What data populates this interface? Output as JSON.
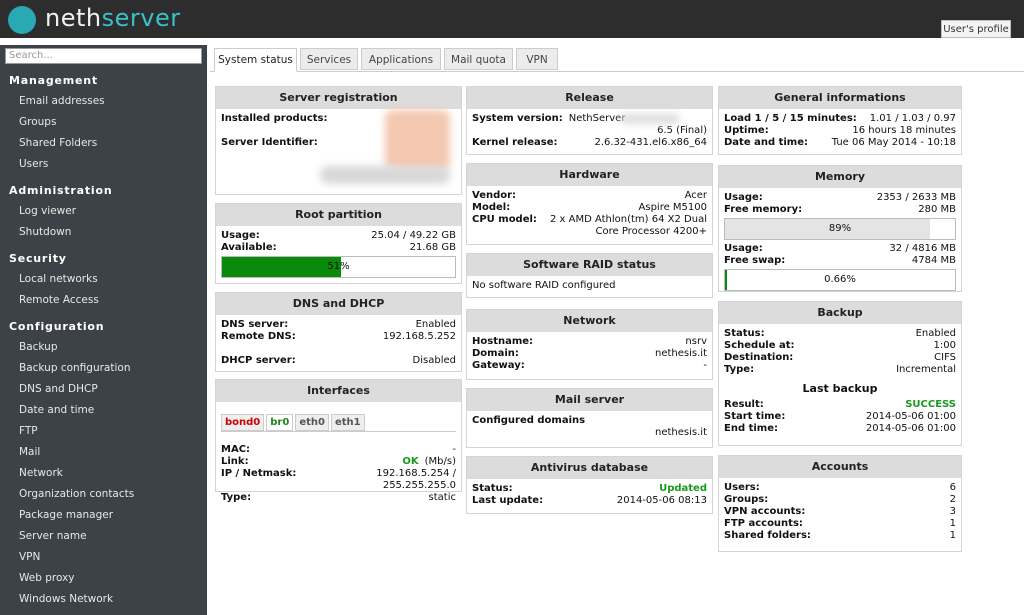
{
  "header": {
    "logo_parts": [
      "neth",
      "server"
    ],
    "profile": "User's profile"
  },
  "sidebar": {
    "search": "Search...",
    "sections": [
      {
        "title": "Management",
        "items": [
          "Email addresses",
          "Groups",
          "Shared Folders",
          "Users"
        ]
      },
      {
        "title": "Administration",
        "items": [
          "Log viewer",
          "Shutdown"
        ]
      },
      {
        "title": "Security",
        "items": [
          "Local networks",
          "Remote Access"
        ]
      },
      {
        "title": "Configuration",
        "items": [
          "Backup",
          "Backup configuration",
          "DNS and DHCP",
          "Date and time",
          "FTP",
          "Mail",
          "Network",
          "Organization contacts",
          "Package manager",
          "Server name",
          "VPN",
          "Web proxy",
          "Windows Network"
        ]
      }
    ]
  },
  "tabs": [
    "System status",
    "Services",
    "Applications",
    "Mail quota",
    "VPN"
  ],
  "columns": [
    [
      {
        "title": "Server registration",
        "groups": [
          [
            {
              "label": "Installed products:"
            }
          ],
          [
            {
              "label": "Server Identifier:"
            }
          ]
        ]
      },
      {
        "title": "Root partition",
        "groups": [
          [
            {
              "label": "Usage:",
              "value": "25.04 / 49.22 GB"
            },
            {
              "label": "Available:",
              "value": "21.68 GB"
            },
            {
              "bar": {
                "value": 51,
                "label": "51%",
                "color": "#0a8a0a"
              }
            }
          ]
        ]
      },
      {
        "title": "DNS and DHCP",
        "groups": [
          [
            {
              "label": "DNS server:",
              "value": "Enabled"
            },
            {
              "label": "Remote DNS:",
              "value": "192.168.5.252"
            }
          ],
          [
            {
              "label": "DHCP server:",
              "value": "Disabled"
            }
          ]
        ]
      },
      {
        "title": "Interfaces",
        "tabs": [
          {
            "label": "bond0",
            "color": "#cc0000"
          },
          {
            "label": "br0",
            "color": "#1a8a1a"
          },
          {
            "label": "eth0",
            "color": "#555555"
          },
          {
            "label": "eth1",
            "color": "#555555"
          }
        ],
        "groups": [
          [
            {
              "label": "MAC:",
              "value": "-"
            },
            {
              "label": "Link:",
              "value": [
                {
                  "text": "OK",
                  "color": "#1a9a1a",
                  "bold": true
                },
                {
                  "text": "(Mb/s)"
                }
              ]
            },
            {
              "label": "IP / Netmask:",
              "value": "192.168.5.254 / 255.255.255.0"
            },
            {
              "label": "Type:",
              "value": "static"
            }
          ]
        ]
      }
    ],
    [
      {
        "title": "Release",
        "groups": [
          [
            {
              "label": "System version:",
              "value": "NethServer",
              "left": true
            },
            {
              "value": "6.5 (Final)"
            },
            {
              "label": "Kernel release:",
              "value": "2.6.32-431.el6.x86_64"
            }
          ]
        ]
      },
      {
        "title": "Hardware",
        "groups": [
          [
            {
              "label": "Vendor:",
              "value": "Acer"
            },
            {
              "label": "Model:",
              "value": "Aspire M5100"
            },
            {
              "label": "CPU model:",
              "value": "2 x AMD Athlon(tm) 64 X2 Dual Core Processor 4200+"
            }
          ]
        ]
      },
      {
        "title": "Software RAID status",
        "groups": [
          [
            {
              "text": "No software RAID configured"
            }
          ]
        ]
      },
      {
        "title": "Network",
        "groups": [
          [
            {
              "label": "Hostname:",
              "value": "nsrv"
            },
            {
              "label": "Domain:",
              "value": "nethesis.it"
            },
            {
              "label": "Gateway:",
              "value": "-"
            }
          ]
        ]
      },
      {
        "title": "Mail server",
        "groups": [
          [
            {
              "label": "Configured domains"
            },
            {
              "value": "nethesis.it"
            }
          ]
        ]
      },
      {
        "title": "Antivirus database",
        "groups": [
          [
            {
              "label": "Status:",
              "value": [
                {
                  "text": "Updated",
                  "color": "#1a9a1a",
                  "bold": true
                }
              ]
            },
            {
              "label": "Last update:",
              "value": "2014-05-06 08:13"
            }
          ]
        ]
      }
    ],
    [
      {
        "title": "General informations",
        "groups": [
          [
            {
              "label": "Load 1 / 5 / 15 minutes:",
              "value": "1.01 / 1.03 / 0.97"
            },
            {
              "label": "Uptime:",
              "value": "16 hours 18 minutes"
            },
            {
              "label": "Date and time:",
              "value": "Tue 06 May 2014 - 10:18"
            }
          ]
        ]
      },
      {
        "title": "Memory",
        "groups": [
          [
            {
              "label": "Usage:",
              "value": "2353 / 2633 MB"
            },
            {
              "label": "Free memory:",
              "value": "280 MB"
            },
            {
              "bar": {
                "value": 89,
                "label": "89%",
                "color": "#e4e4e4"
              }
            },
            {
              "label": "Usage:",
              "value": "32 / 4816 MB"
            },
            {
              "label": "Free swap:",
              "value": "4784 MB"
            },
            {
              "bar": {
                "value": 0.66,
                "label": "0.66%",
                "color": "#0a8a0a"
              }
            }
          ]
        ]
      },
      {
        "title": "Backup",
        "groups": [
          [
            {
              "label": "Status:",
              "value": "Enabled"
            },
            {
              "label": "Schedule at:",
              "value": "1:00"
            },
            {
              "label": "Destination:",
              "value": "CIFS"
            },
            {
              "label": "Type:",
              "value": "Incremental"
            },
            {
              "heading": "Last backup"
            },
            {
              "label": "Result:",
              "value": [
                {
                  "text": "SUCCESS",
                  "color": "#1a9a1a",
                  "bold": true
                }
              ]
            },
            {
              "label": "Start time:",
              "value": "2014-05-06 01:00"
            },
            {
              "label": "End time:",
              "value": "2014-05-06 01:00"
            }
          ]
        ]
      },
      {
        "title": "Accounts",
        "groups": [
          [
            {
              "label": "Users:",
              "value": "6"
            },
            {
              "label": "Groups:",
              "value": "2"
            },
            {
              "label": "VPN accounts:",
              "value": "3"
            },
            {
              "label": "FTP accounts:",
              "value": "1"
            },
            {
              "label": "Shared folders:",
              "value": "1"
            }
          ]
        ]
      }
    ]
  ]
}
